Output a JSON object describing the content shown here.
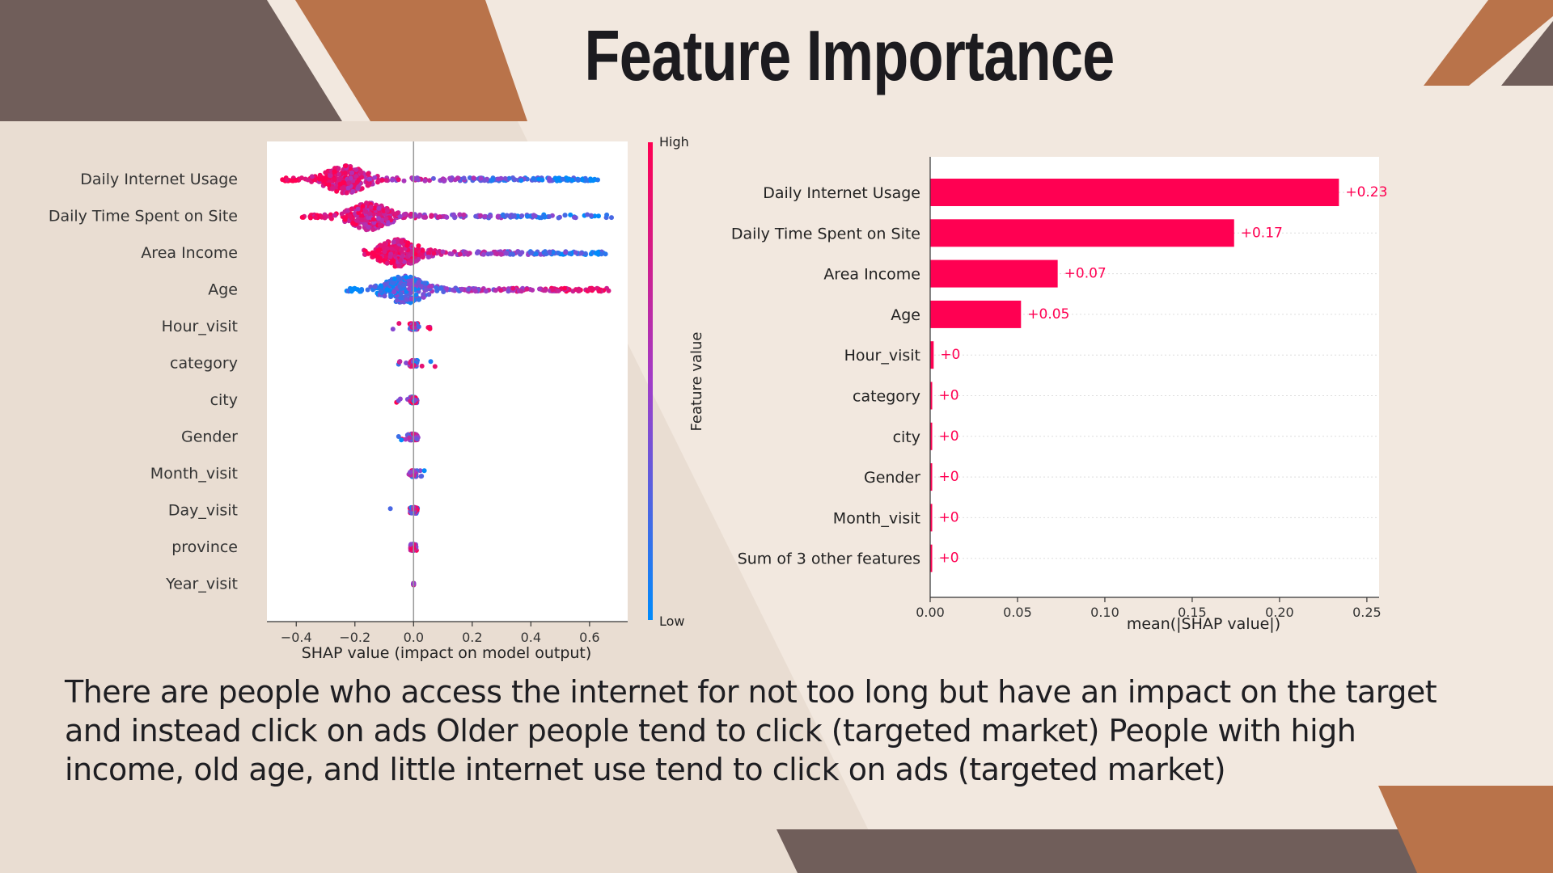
{
  "slide": {
    "title": "Feature Importance",
    "body": "There are people who access the internet for not too long but have an impact on the target and instead click on ads Older people tend to click (targeted market) People with high income, old age, and little internet use tend to click on ads (targeted market)",
    "colors": {
      "background": "#f2e8df",
      "band": "#e9ddd2",
      "brown_dark": "#705e5a",
      "copper": "#b9734a"
    }
  },
  "chart_data": [
    {
      "type": "scatter",
      "subtype": "shap-beeswarm",
      "features": [
        "Daily Internet Usage",
        "Daily Time Spent on Site",
        "Area Income",
        "Age",
        "Hour_visit",
        "category",
        "city",
        "Gender",
        "Month_visit",
        "Day_visit",
        "province",
        "Year_visit"
      ],
      "xlabel": "SHAP value (impact on model output)",
      "xlim": [
        -0.5,
        0.73
      ],
      "xticks": [
        {
          "value": -0.4,
          "label": "−0.4"
        },
        {
          "value": -0.2,
          "label": "−0.2"
        },
        {
          "value": 0.0,
          "label": "0.0"
        },
        {
          "value": 0.2,
          "label": "0.2"
        },
        {
          "value": 0.4,
          "label": "0.4"
        },
        {
          "value": 0.6,
          "label": "0.6"
        }
      ],
      "distributions": [
        {
          "feature": "Daily Internet Usage",
          "min": -0.45,
          "max": 0.63,
          "peak": -0.23,
          "high_side": "left"
        },
        {
          "feature": "Daily Time Spent on Site",
          "min": -0.38,
          "max": 0.68,
          "peak": -0.15,
          "high_side": "left"
        },
        {
          "feature": "Area Income",
          "min": -0.17,
          "max": 0.67,
          "peak": -0.05,
          "high_side": "left"
        },
        {
          "feature": "Age",
          "min": -0.23,
          "max": 0.67,
          "peak": -0.03,
          "high_side": "right"
        },
        {
          "feature": "Hour_visit",
          "min": -0.09,
          "max": 0.07,
          "peak": 0.0,
          "high_side": "mixed"
        },
        {
          "feature": "category",
          "min": -0.08,
          "max": 0.09,
          "peak": 0.0,
          "high_side": "mixed"
        },
        {
          "feature": "city",
          "min": -0.07,
          "max": 0.03,
          "peak": 0.0,
          "high_side": "mixed"
        },
        {
          "feature": "Gender",
          "min": -0.07,
          "max": 0.02,
          "peak": 0.0,
          "high_side": "mixed"
        },
        {
          "feature": "Month_visit",
          "min": -0.02,
          "max": 0.05,
          "peak": 0.0,
          "high_side": "mixed"
        },
        {
          "feature": "Day_visit",
          "min": -0.1,
          "max": 0.02,
          "peak": 0.0,
          "high_side": "mixed"
        },
        {
          "feature": "province",
          "min": -0.01,
          "max": 0.01,
          "peak": 0.0,
          "high_side": "mixed"
        },
        {
          "feature": "Year_visit",
          "min": 0.0,
          "max": 0.0,
          "peak": 0.0,
          "high_side": "mixed"
        }
      ],
      "colorbar": {
        "label": "Feature value",
        "high_label": "High",
        "low_label": "Low",
        "high_color": "#ff0052",
        "low_color": "#008bfb"
      }
    },
    {
      "type": "bar",
      "orientation": "horizontal",
      "categories": [
        "Daily Internet Usage",
        "Daily Time Spent on Site",
        "Area Income",
        "Age",
        "Hour_visit",
        "category",
        "city",
        "Gender",
        "Month_visit",
        "Sum of 3 other features"
      ],
      "values": [
        0.234,
        0.174,
        0.073,
        0.052,
        0.002,
        0.001,
        0.001,
        0.001,
        0.001,
        0.001
      ],
      "value_labels": [
        "+0.23",
        "+0.17",
        "+0.07",
        "+0.05",
        "+0",
        "+0",
        "+0",
        "+0",
        "+0",
        "+0"
      ],
      "xlabel": "mean(|SHAP value|)",
      "xlim": [
        0,
        0.257
      ],
      "xticks": [
        {
          "value": 0.0,
          "label": "0.00"
        },
        {
          "value": 0.05,
          "label": "0.05"
        },
        {
          "value": 0.1,
          "label": "0.10"
        },
        {
          "value": 0.15,
          "label": "0.15"
        },
        {
          "value": 0.2,
          "label": "0.20"
        },
        {
          "value": 0.25,
          "label": "0.25"
        }
      ],
      "bar_color": "#ff0052"
    }
  ]
}
